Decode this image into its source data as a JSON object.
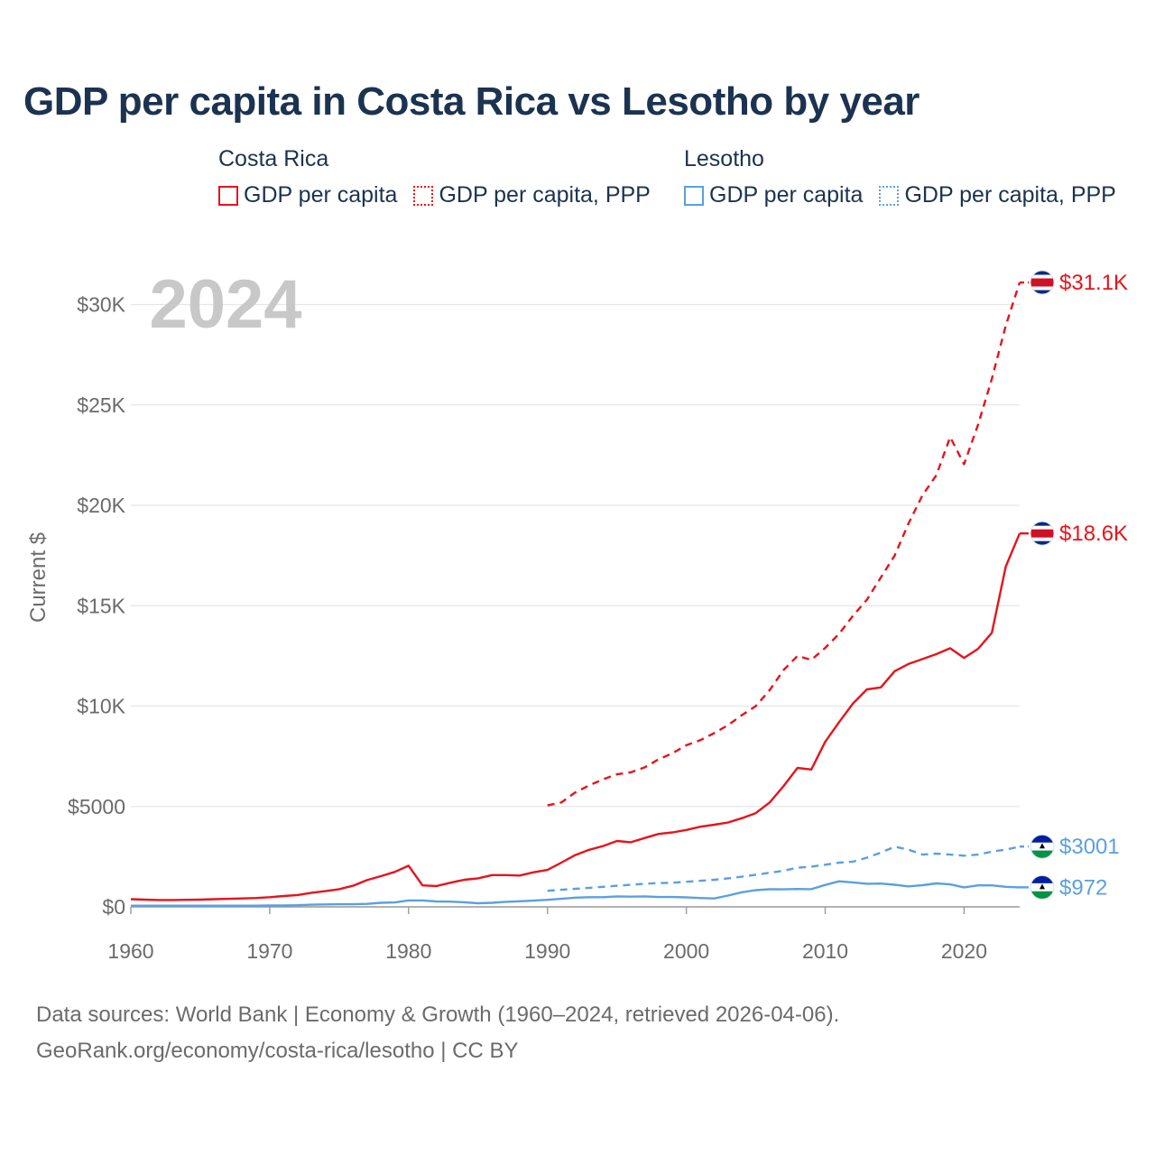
{
  "title": "GDP per capita in Costa Rica vs Lesotho by year",
  "legend": {
    "groups": [
      {
        "country": "Costa Rica",
        "color": "#e8131a",
        "items": [
          {
            "label": "GDP per capita",
            "style": "solid"
          },
          {
            "label": "GDP per capita, PPP",
            "style": "dotted"
          }
        ]
      },
      {
        "country": "Lesotho",
        "color": "#5aa0e0",
        "items": [
          {
            "label": "GDP per capita",
            "style": "solid"
          },
          {
            "label": "GDP per capita, PPP",
            "style": "dotted"
          }
        ]
      }
    ]
  },
  "year_label": "2024",
  "source": {
    "line1": "Data sources: World Bank | Economy & Growth (1960–2024, retrieved 2026-04-06).",
    "line2": "GeoRank.org/economy/costa-rica/lesotho | CC BY"
  },
  "chart_data": {
    "type": "line",
    "title": "GDP per capita in Costa Rica vs Lesotho by year",
    "xlabel": "",
    "ylabel": "Current $",
    "xlim": [
      1960,
      2024
    ],
    "ylim": [
      0,
      32000
    ],
    "grid": true,
    "x_ticks": [
      {
        "value": 1960,
        "label": "1960"
      },
      {
        "value": 1970,
        "label": "1970"
      },
      {
        "value": 1980,
        "label": "1980"
      },
      {
        "value": 1990,
        "label": "1990"
      },
      {
        "value": 2000,
        "label": "2000"
      },
      {
        "value": 2010,
        "label": "2010"
      },
      {
        "value": 2020,
        "label": "2020"
      }
    ],
    "y_ticks": [
      {
        "value": 0,
        "label": "$0"
      },
      {
        "value": 5000,
        "label": "$5000"
      },
      {
        "value": 10000,
        "label": "$10K"
      },
      {
        "value": 15000,
        "label": "$15K"
      },
      {
        "value": 20000,
        "label": "$20K"
      },
      {
        "value": 25000,
        "label": "$25K"
      },
      {
        "value": 30000,
        "label": "$30K"
      }
    ],
    "series": [
      {
        "name": "Costa Rica GDP per capita",
        "country": "Costa Rica",
        "color": "#e8131a",
        "dash": "solid",
        "end_label": "$18.6K",
        "flag": "costa-rica",
        "x": [
          1960,
          1961,
          1962,
          1963,
          1964,
          1965,
          1966,
          1967,
          1968,
          1969,
          1970,
          1971,
          1972,
          1973,
          1974,
          1975,
          1976,
          1977,
          1978,
          1979,
          1980,
          1981,
          1982,
          1983,
          1984,
          1985,
          1986,
          1987,
          1988,
          1989,
          1990,
          1991,
          1992,
          1993,
          1994,
          1995,
          1996,
          1997,
          1998,
          1999,
          2000,
          2001,
          2002,
          2003,
          2004,
          2005,
          2006,
          2007,
          2008,
          2009,
          2010,
          2011,
          2012,
          2013,
          2014,
          2015,
          2016,
          2017,
          2018,
          2019,
          2020,
          2021,
          2022,
          2023,
          2024
        ],
        "values": [
          380,
          360,
          340,
          340,
          350,
          360,
          380,
          400,
          420,
          440,
          480,
          540,
          590,
          700,
          780,
          880,
          1050,
          1330,
          1530,
          1740,
          2050,
          1070,
          1040,
          1200,
          1350,
          1420,
          1580,
          1580,
          1560,
          1720,
          1840,
          2200,
          2580,
          2840,
          3030,
          3280,
          3220,
          3430,
          3630,
          3710,
          3830,
          3990,
          4090,
          4200,
          4420,
          4670,
          5200,
          6020,
          6920,
          6840,
          8220,
          9200,
          10130,
          10830,
          10930,
          11740,
          12100,
          12340,
          12590,
          12880,
          12400,
          12850,
          13650,
          16950,
          18600
        ]
      },
      {
        "name": "Costa Rica GDP per capita, PPP",
        "country": "Costa Rica",
        "color": "#e8131a",
        "dash": "dashed",
        "end_label": "$31.1K",
        "flag": "costa-rica",
        "x": [
          1990,
          1991,
          1992,
          1993,
          1994,
          1995,
          1996,
          1997,
          1998,
          1999,
          2000,
          2001,
          2002,
          2003,
          2004,
          2005,
          2006,
          2007,
          2008,
          2009,
          2010,
          2011,
          2012,
          2013,
          2014,
          2015,
          2016,
          2017,
          2018,
          2019,
          2020,
          2021,
          2022,
          2023,
          2024
        ],
        "values": [
          5050,
          5200,
          5700,
          6050,
          6350,
          6600,
          6700,
          6950,
          7350,
          7650,
          8050,
          8300,
          8650,
          9050,
          9550,
          10000,
          10800,
          11800,
          12500,
          12300,
          12900,
          13600,
          14500,
          15300,
          16400,
          17500,
          19100,
          20500,
          21500,
          23400,
          22050,
          24000,
          26300,
          28950,
          31100
        ]
      },
      {
        "name": "Lesotho GDP per capita",
        "country": "Lesotho",
        "color": "#5aa0e0",
        "dash": "solid",
        "end_label": "$972",
        "flag": "lesotho",
        "x": [
          1960,
          1961,
          1962,
          1963,
          1964,
          1965,
          1966,
          1967,
          1968,
          1969,
          1970,
          1971,
          1972,
          1973,
          1974,
          1975,
          1976,
          1977,
          1978,
          1979,
          1980,
          1981,
          1982,
          1983,
          1984,
          1985,
          1986,
          1987,
          1988,
          1989,
          1990,
          1991,
          1992,
          1993,
          1994,
          1995,
          1996,
          1997,
          1998,
          1999,
          2000,
          2001,
          2002,
          2003,
          2004,
          2005,
          2006,
          2007,
          2008,
          2009,
          2010,
          2011,
          2012,
          2013,
          2014,
          2015,
          2016,
          2017,
          2018,
          2019,
          2020,
          2021,
          2022,
          2023,
          2024
        ],
        "values": [
          60,
          60,
          60,
          60,
          60,
          60,
          60,
          60,
          60,
          60,
          70,
          70,
          80,
          110,
          120,
          130,
          130,
          150,
          200,
          220,
          320,
          320,
          270,
          260,
          230,
          180,
          200,
          250,
          280,
          310,
          350,
          400,
          460,
          480,
          480,
          520,
          510,
          520,
          490,
          490,
          470,
          440,
          420,
          560,
          730,
          830,
          880,
          870,
          890,
          880,
          1090,
          1270,
          1220,
          1150,
          1160,
          1100,
          1020,
          1080,
          1170,
          1120,
          970,
          1070,
          1070,
          1000,
          972
        ]
      },
      {
        "name": "Lesotho GDP per capita, PPP",
        "country": "Lesotho",
        "color": "#5aa0e0",
        "dash": "dashed",
        "end_label": "$3001",
        "flag": "lesotho",
        "x": [
          1990,
          1991,
          1992,
          1993,
          1994,
          1995,
          1996,
          1997,
          1998,
          1999,
          2000,
          2001,
          2002,
          2003,
          2004,
          2005,
          2006,
          2007,
          2008,
          2009,
          2010,
          2011,
          2012,
          2013,
          2014,
          2015,
          2016,
          2017,
          2018,
          2019,
          2020,
          2021,
          2022,
          2023,
          2024
        ],
        "values": [
          800,
          850,
          900,
          950,
          1000,
          1050,
          1100,
          1150,
          1180,
          1200,
          1250,
          1300,
          1350,
          1420,
          1500,
          1600,
          1700,
          1800,
          1950,
          2000,
          2100,
          2200,
          2250,
          2450,
          2700,
          3000,
          2850,
          2600,
          2650,
          2600,
          2550,
          2600,
          2750,
          2850,
          3001
        ]
      }
    ]
  }
}
